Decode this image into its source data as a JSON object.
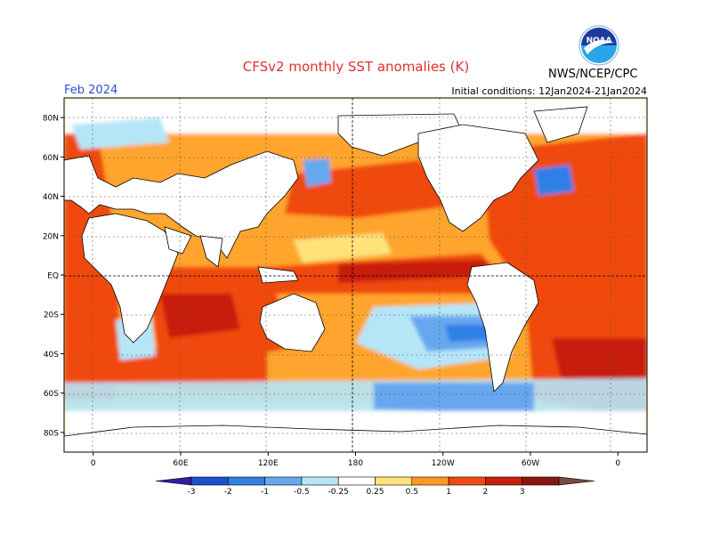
{
  "title": "CFSv2 monthly SST anomalies (K)",
  "valid_month": "Feb 2024",
  "initial_conditions": "Initial conditions: 12Jan2024-21Jan2024",
  "agency": "NWS/NCEP/CPC",
  "logo_text": "NOAA",
  "map": {
    "lat_ticks": [
      {
        "lat": 80,
        "label": "80N"
      },
      {
        "lat": 60,
        "label": "60N"
      },
      {
        "lat": 40,
        "label": "40N"
      },
      {
        "lat": 20,
        "label": "20N"
      },
      {
        "lat": 0,
        "label": "EQ"
      },
      {
        "lat": -20,
        "label": "20S"
      },
      {
        "lat": -40,
        "label": "40S"
      },
      {
        "lat": -60,
        "label": "60S"
      },
      {
        "lat": -80,
        "label": "80S"
      }
    ],
    "lon_ticks": [
      {
        "lon": 0,
        "label": "0"
      },
      {
        "lon": 60,
        "label": "60E"
      },
      {
        "lon": 120,
        "label": "120E"
      },
      {
        "lon": 180,
        "label": "180"
      },
      {
        "lon": 240,
        "label": "120W"
      },
      {
        "lon": 300,
        "label": "60W"
      },
      {
        "lon": 360,
        "label": "0"
      }
    ],
    "lon_range": [
      -20,
      380
    ],
    "lat_range": [
      -90,
      90
    ]
  },
  "colorbar": {
    "levels": [
      "-3",
      "-2",
      "-1",
      "-0.5",
      "-0.25",
      "0.25",
      "0.5",
      "1",
      "2",
      "3"
    ],
    "colors": [
      "#3a1aa0",
      "#1a4fd0",
      "#2f7fe6",
      "#66a7ef",
      "#b5e6f8",
      "#ffffff",
      "#ffe27a",
      "#ff9a1e",
      "#f04a10",
      "#c81e0c",
      "#8a140e",
      "#7a4a40"
    ]
  }
}
